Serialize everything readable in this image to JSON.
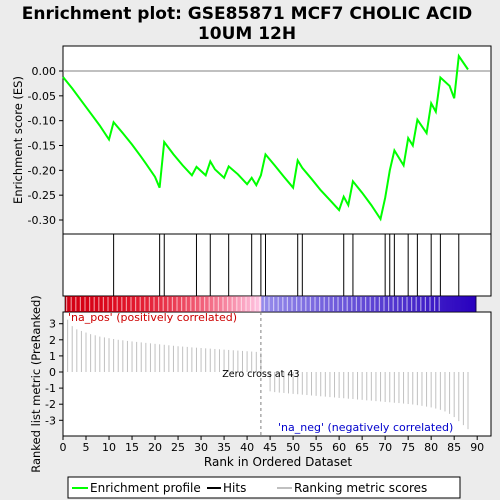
{
  "chart_data": {
    "type": "line",
    "title_line1": "Enrichment plot: GSE85871 MCF7 CHOLIC ACID",
    "title_line2": "10UM 12H",
    "top_panel": {
      "ylabel": "Enrichment score (ES)",
      "ylim": [
        -0.33,
        0.05
      ],
      "yticks": [
        "0.00",
        "-0.05",
        "-0.10",
        "-0.15",
        "-0.20",
        "-0.25",
        "-0.30"
      ],
      "ytick_values": [
        0.0,
        -0.05,
        -0.1,
        -0.15,
        -0.2,
        -0.25,
        -0.3
      ],
      "series": [
        {
          "name": "Enrichment profile",
          "color": "#00ff00",
          "x": [
            0,
            2,
            4,
            6,
            8,
            10,
            11,
            13,
            15,
            17,
            18,
            20,
            21,
            22,
            24,
            26,
            28,
            29,
            31,
            32,
            33,
            35,
            36,
            38,
            40,
            41,
            42,
            43,
            44,
            46,
            48,
            50,
            51,
            52,
            54,
            56,
            58,
            60,
            61,
            62,
            63,
            65,
            67,
            69,
            70,
            71,
            72,
            74,
            75,
            76,
            77,
            79,
            80,
            81,
            82,
            84,
            85,
            86,
            88
          ],
          "y": [
            -0.012,
            -0.035,
            -0.06,
            -0.085,
            -0.11,
            -0.138,
            -0.103,
            -0.125,
            -0.148,
            -0.173,
            -0.186,
            -0.213,
            -0.235,
            -0.143,
            -0.168,
            -0.19,
            -0.21,
            -0.193,
            -0.21,
            -0.182,
            -0.198,
            -0.215,
            -0.192,
            -0.208,
            -0.228,
            -0.215,
            -0.23,
            -0.21,
            -0.168,
            -0.19,
            -0.213,
            -0.235,
            -0.18,
            -0.195,
            -0.217,
            -0.24,
            -0.26,
            -0.28,
            -0.253,
            -0.27,
            -0.222,
            -0.245,
            -0.27,
            -0.298,
            -0.255,
            -0.2,
            -0.16,
            -0.19,
            -0.135,
            -0.15,
            -0.098,
            -0.125,
            -0.065,
            -0.082,
            -0.013,
            -0.03,
            -0.055,
            0.03,
            0.003
          ]
        }
      ]
    },
    "hits_panel": {
      "hits": [
        11,
        21,
        22,
        29,
        32,
        36,
        41,
        43,
        44,
        51,
        52,
        61,
        63,
        70,
        71,
        72,
        75,
        77,
        80,
        82,
        86
      ],
      "hits_color": "#000000"
    },
    "ranking_panel": {
      "ylabel": "Ranked list metric (PreRanked)",
      "ylim": [
        -4,
        3.5
      ],
      "yticks": [
        "3",
        "2",
        "1",
        "0",
        "-1",
        "-2",
        "-3"
      ],
      "ytick_values": [
        3,
        2,
        1,
        0,
        -1,
        -2,
        -3
      ],
      "metric_values": [
        3.25,
        2.85,
        2.65,
        2.55,
        2.45,
        2.35,
        2.28,
        2.2,
        2.15,
        2.1,
        2.05,
        2.0,
        1.97,
        1.93,
        1.9,
        1.87,
        1.84,
        1.81,
        1.78,
        1.75,
        1.72,
        1.69,
        1.66,
        1.63,
        1.6,
        1.58,
        1.56,
        1.53,
        1.51,
        1.49,
        1.47,
        1.45,
        1.43,
        1.41,
        1.39,
        1.37,
        1.35,
        1.33,
        1.31,
        1.29,
        1.27,
        1.25,
        1.2,
        0.0,
        -1.2,
        -1.25,
        -1.28,
        -1.3,
        -1.33,
        -1.36,
        -1.38,
        -1.41,
        -1.43,
        -1.46,
        -1.48,
        -1.51,
        -1.53,
        -1.56,
        -1.58,
        -1.61,
        -1.63,
        -1.66,
        -1.68,
        -1.71,
        -1.73,
        -1.76,
        -1.78,
        -1.81,
        -1.83,
        -1.86,
        -1.88,
        -1.91,
        -1.93,
        -1.96,
        -1.99,
        -2.02,
        -2.06,
        -2.1,
        -2.15,
        -2.2,
        -2.27,
        -2.35,
        -2.45,
        -2.6,
        -2.8,
        -3.05,
        -3.3,
        -3.55
      ],
      "metric_color": "#c0c0c0",
      "zero_cross_rank": 43,
      "zero_cross_label": "Zero cross at 43",
      "pos_label": "'na_pos' (positively correlated)",
      "pos_color": "#cc0000",
      "neg_label": "'na_neg' (negatively correlated)",
      "neg_color": "#0000cc"
    },
    "xlabel": "Rank in Ordered Dataset",
    "xlim": [
      0,
      93
    ],
    "xticks": [
      "0",
      "5",
      "10",
      "15",
      "20",
      "25",
      "30",
      "35",
      "40",
      "45",
      "50",
      "55",
      "60",
      "65",
      "70",
      "75",
      "80",
      "85",
      "90"
    ],
    "xtick_values": [
      0,
      5,
      10,
      15,
      20,
      25,
      30,
      35,
      40,
      45,
      50,
      55,
      60,
      65,
      70,
      75,
      80,
      85,
      90
    ],
    "legend": {
      "placement": "bottom",
      "items": [
        {
          "label": "Enrichment profile",
          "color": "#00ff00",
          "kind": "line"
        },
        {
          "label": "Hits",
          "color": "#000000",
          "kind": "line"
        },
        {
          "label": "Ranking metric scores",
          "color": "#c0c0c0",
          "kind": "line"
        }
      ]
    },
    "grid": false
  }
}
